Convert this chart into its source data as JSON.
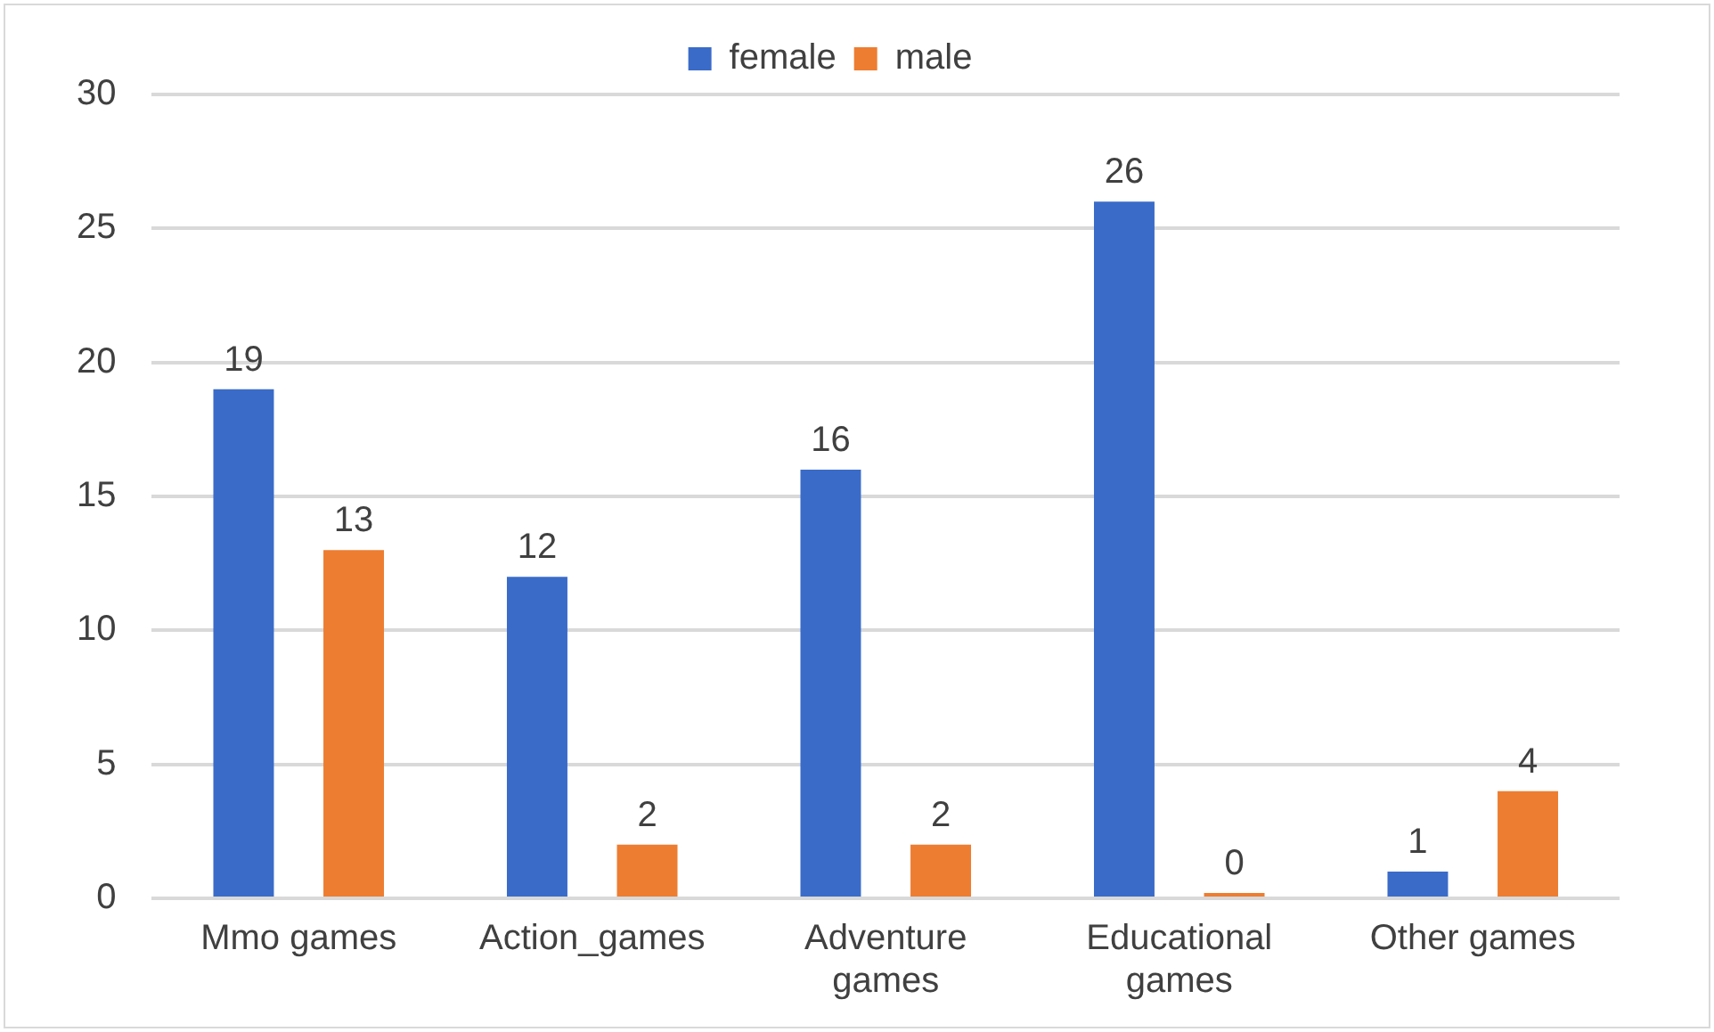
{
  "chart_data": {
    "type": "bar",
    "categories": [
      "Mmo games",
      "Action_games",
      "Adventure games",
      "Educational games",
      "Other games"
    ],
    "series": [
      {
        "name": "female",
        "color": "#3a6bc8",
        "values": [
          19,
          12,
          16,
          26,
          1
        ]
      },
      {
        "name": "male",
        "color": "#ed7d31",
        "values": [
          13,
          2,
          2,
          0,
          4
        ]
      }
    ],
    "ylim": [
      0,
      30
    ],
    "yticks": [
      0,
      5,
      10,
      15,
      20,
      25,
      30
    ],
    "grid": "y",
    "legend": "top",
    "data_labels": true
  }
}
